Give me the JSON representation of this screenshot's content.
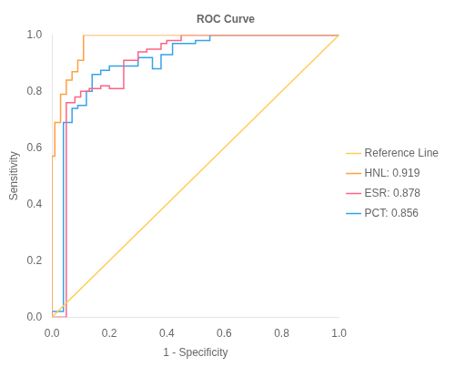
{
  "chart_data": {
    "type": "line",
    "title": "ROC Curve",
    "x_label": "1 - Specificity",
    "y_label": "Sensitivity",
    "xlim": [
      0.0,
      1.0
    ],
    "ylim": [
      0.0,
      1.0
    ],
    "xticks": [
      {
        "value": 0.0,
        "label": "0.0"
      },
      0.2,
      0.4,
      0.6,
      0.8,
      {
        "value": 1.0,
        "label": "1.0"
      }
    ],
    "yticks": [
      {
        "value": 0.0,
        "label": "0.0"
      },
      0.2,
      0.4,
      0.6,
      0.8,
      {
        "value": 1.0,
        "label": "1.0"
      }
    ],
    "grid": false,
    "legend": "right",
    "series": [
      {
        "name": "PCT: 0.856",
        "x": [
          0.0,
          0.0,
          0.04,
          0.04,
          0.07,
          0.07,
          0.09,
          0.09,
          0.12,
          0.12,
          0.14,
          0.14,
          0.17,
          0.17,
          0.2,
          0.2,
          0.3,
          0.3,
          0.35,
          0.35,
          0.38,
          0.38,
          0.42,
          0.42,
          0.5,
          0.5,
          0.55,
          0.55,
          0.8,
          0.8,
          1.0
        ],
        "values": [
          0.0,
          0.02,
          0.02,
          0.69,
          0.69,
          0.74,
          0.74,
          0.75,
          0.75,
          0.8,
          0.8,
          0.86,
          0.86,
          0.875,
          0.875,
          0.89,
          0.89,
          0.92,
          0.92,
          0.88,
          0.88,
          0.93,
          0.93,
          0.97,
          0.97,
          0.98,
          0.98,
          1.0,
          1.0,
          1.0,
          1.0
        ]
      },
      {
        "name": "ESR: 0.878",
        "x": [
          0.0,
          0.0,
          0.05,
          0.05,
          0.08,
          0.08,
          0.1,
          0.1,
          0.13,
          0.13,
          0.17,
          0.17,
          0.2,
          0.2,
          0.25,
          0.25,
          0.3,
          0.3,
          0.33,
          0.33,
          0.38,
          0.38,
          0.4,
          0.4,
          0.45,
          0.45,
          0.55,
          0.55,
          1.0
        ],
        "values": [
          0.0,
          0.0,
          0.0,
          0.76,
          0.76,
          0.78,
          0.78,
          0.8,
          0.8,
          0.81,
          0.81,
          0.82,
          0.82,
          0.81,
          0.81,
          0.91,
          0.91,
          0.94,
          0.94,
          0.95,
          0.95,
          0.97,
          0.97,
          0.98,
          0.98,
          1.0,
          1.0,
          1.0,
          1.0
        ]
      },
      {
        "name": "HNL: 0.919",
        "x": [
          0.0,
          0.0,
          0.01,
          0.01,
          0.03,
          0.03,
          0.05,
          0.05,
          0.07,
          0.07,
          0.09,
          0.09,
          0.11,
          0.11,
          0.3,
          0.3,
          0.35,
          0.35,
          1.0
        ],
        "values": [
          0.0,
          0.57,
          0.57,
          0.69,
          0.69,
          0.79,
          0.79,
          0.84,
          0.84,
          0.87,
          0.87,
          0.91,
          0.91,
          1.0,
          1.0,
          1.0,
          1.0,
          1.0,
          1.0
        ]
      },
      {
        "name": "Reference Line",
        "x": [
          0,
          1
        ],
        "values": [
          0,
          1
        ]
      }
    ]
  }
}
